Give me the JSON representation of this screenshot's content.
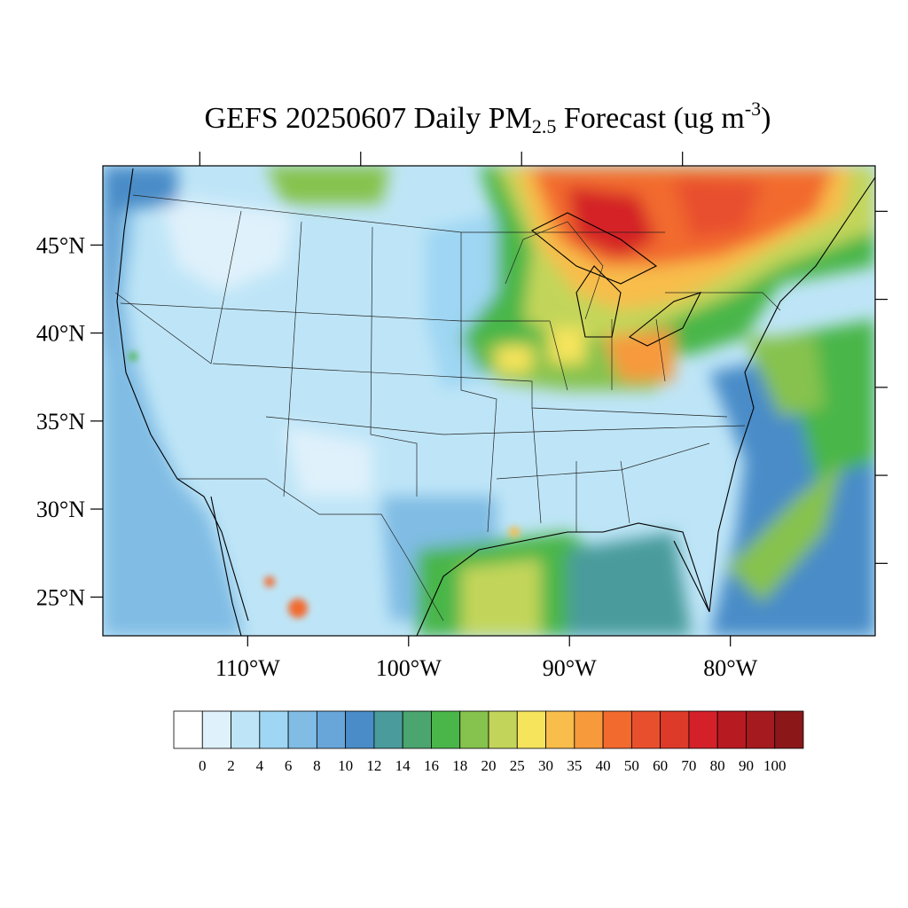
{
  "title": {
    "prefix": "GEFS 20250607 Daily PM",
    "sub": "2.5",
    "middle": " Forecast (ug m",
    "sup": "-3",
    "suffix": ")"
  },
  "map": {
    "lon_range": [
      -119,
      -71
    ],
    "lat_range": [
      22.8,
      49.5
    ],
    "lat_labels": [
      "45°N",
      "40°N",
      "35°N",
      "30°N",
      "25°N"
    ],
    "lat_values": [
      45,
      40,
      35,
      30,
      25
    ],
    "lon_labels": [
      "110°W",
      "100°W",
      "90°W",
      "80°W"
    ],
    "lon_values": [
      -110,
      -100,
      -90,
      -80
    ],
    "field": "PM2.5 daily mean concentration"
  },
  "colorbar": {
    "labels": [
      "0",
      "2",
      "4",
      "6",
      "8",
      "10",
      "12",
      "14",
      "16",
      "18",
      "20",
      "25",
      "30",
      "35",
      "40",
      "50",
      "60",
      "70",
      "80",
      "90",
      "100"
    ],
    "colors": [
      "#ffffff",
      "#dff1fb",
      "#bee5f7",
      "#9ed6f3",
      "#80bce4",
      "#68a6da",
      "#4a8cc8",
      "#4a9b9c",
      "#4ba56e",
      "#4ab64a",
      "#86c24e",
      "#c2d55a",
      "#f6e45c",
      "#f8bd4b",
      "#f79a3c",
      "#f26a2e",
      "#e8502d",
      "#de3a2a",
      "#d42028",
      "#b81a22",
      "#a51a1f",
      "#8b1719"
    ]
  }
}
